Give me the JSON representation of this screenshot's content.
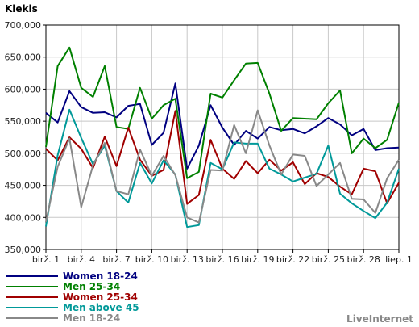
{
  "chart_data": {
    "type": "line",
    "ylabel": "Kiekis",
    "ylim": [
      350000,
      700000
    ],
    "y_ticks": [
      "350,000",
      "400,000",
      "450,000",
      "500,000",
      "550,000",
      "600,000",
      "650,000",
      "700,000"
    ],
    "y_tick_values": [
      350000,
      400000,
      450000,
      500000,
      550000,
      600000,
      650000,
      700000
    ],
    "x_tick_labels": [
      "birž. 1",
      "birž. 4",
      "birž. 7",
      "birž. 10",
      "birž. 13",
      "birž. 16",
      "birž. 19",
      "birž. 22",
      "birž. 25",
      "birž. 28",
      "liep. 1"
    ],
    "x_tick_index": [
      0,
      3,
      6,
      9,
      12,
      15,
      18,
      21,
      24,
      27,
      30
    ],
    "num_points": 31,
    "grid": true,
    "legend_position": "bottom-left",
    "series": [
      {
        "name": "Women 18-24",
        "color": "#000080",
        "values": [
          563000,
          548000,
          597000,
          572000,
          563000,
          564000,
          556000,
          574000,
          577000,
          513000,
          532000,
          609000,
          476000,
          512000,
          575000,
          540000,
          513000,
          535000,
          523000,
          541000,
          536000,
          538000,
          531000,
          542000,
          555000,
          545000,
          528000,
          538000,
          505000,
          508000,
          509000
        ]
      },
      {
        "name": "Men 25-34",
        "color": "#008000",
        "values": [
          510000,
          636000,
          665000,
          602000,
          588000,
          636000,
          541000,
          538000,
          602000,
          554000,
          575000,
          585000,
          461000,
          471000,
          593000,
          587000,
          614000,
          640000,
          641000,
          593000,
          535000,
          555000,
          554000,
          553000,
          578000,
          598000,
          500000,
          523000,
          508000,
          521000,
          579000
        ]
      },
      {
        "name": "Women 25-34",
        "color": "#a00000",
        "values": [
          507000,
          489000,
          525000,
          507000,
          477000,
          526000,
          480000,
          540000,
          490000,
          465000,
          474000,
          566000,
          421000,
          435000,
          521000,
          476000,
          460000,
          488000,
          469000,
          490000,
          473000,
          486000,
          452000,
          469000,
          463000,
          448000,
          436000,
          476000,
          472000,
          422000,
          454000
        ]
      },
      {
        "name": "Men above 45",
        "color": "#009999",
        "values": [
          386000,
          497000,
          568000,
          524000,
          483000,
          512000,
          441000,
          423000,
          485000,
          453000,
          489000,
          467000,
          385000,
          388000,
          485000,
          475000,
          517000,
          515000,
          515000,
          476000,
          467000,
          456000,
          462000,
          468000,
          512000,
          437000,
          422000,
          410000,
          399000,
          423000,
          476000
        ]
      },
      {
        "name": "Men 18-24",
        "color": "#888888",
        "values": [
          393000,
          479000,
          523000,
          416000,
          481000,
          516000,
          441000,
          436000,
          506000,
          465000,
          496000,
          466000,
          400000,
          392000,
          474000,
          473000,
          544000,
          500000,
          567000,
          512000,
          467000,
          498000,
          496000,
          449000,
          467000,
          485000,
          429000,
          428000,
          407000,
          461000,
          490000
        ]
      }
    ]
  },
  "branding": {
    "label": "LiveInternet"
  }
}
